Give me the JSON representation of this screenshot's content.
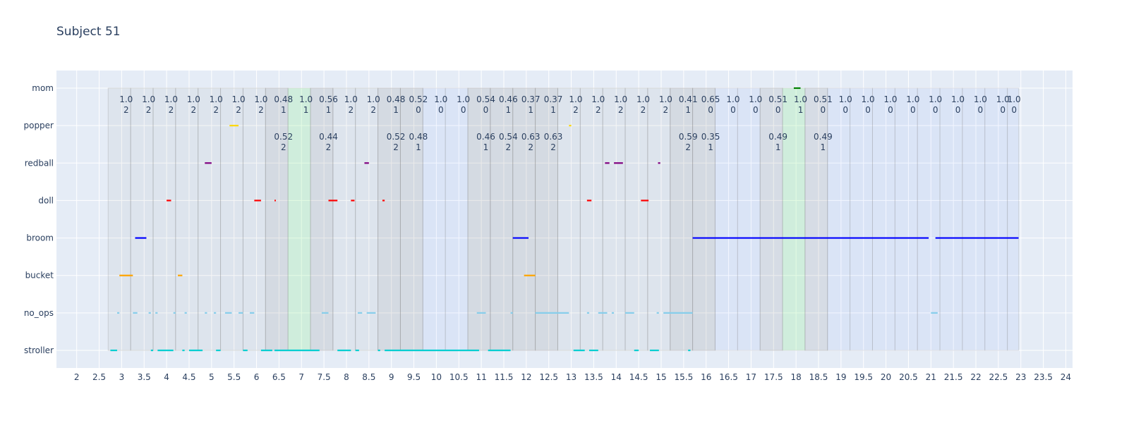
{
  "chart_data": {
    "type": "timeline",
    "title": "Subject 51",
    "xlabel": "",
    "ylabel": "",
    "xlim": [
      1.55,
      24.15
    ],
    "x_ticks": [
      "2",
      "2.5",
      "3",
      "3.5",
      "4",
      "4.5",
      "5",
      "5.5",
      "6",
      "6.5",
      "7",
      "7.5",
      "8",
      "8.5",
      "9",
      "9.5",
      "10",
      "10.5",
      "11",
      "11.5",
      "12",
      "12.5",
      "13",
      "13.5",
      "14",
      "14.5",
      "15",
      "15.5",
      "16",
      "16.5",
      "17",
      "17.5",
      "18",
      "18.5",
      "19",
      "19.5",
      "20",
      "20.5",
      "21",
      "21.5",
      "22",
      "22.5",
      "23",
      "23.5",
      "24"
    ],
    "categories": [
      "stroller",
      "no_ops",
      "bucket",
      "broom",
      "doll",
      "redball",
      "popper",
      "mom"
    ],
    "grid": true,
    "colors": {
      "plot_bg": "#e5ecf6",
      "grid": "#ffffff",
      "text": "#2a3f5f",
      "stroller": "#00ced1",
      "no_ops": "#87ceeb",
      "bucket": "#ffa500",
      "broom": "#0000ff",
      "doll": "#ff0000",
      "redball": "#800080",
      "popper": "#ffd700",
      "mom": "#008000",
      "window_gray": "#808080",
      "window_blue": "#5c7cfa",
      "window_green": "#90ee90"
    },
    "series": [
      {
        "name": "stroller",
        "segments": [
          [
            2.75,
            2.9
          ],
          [
            3.65,
            3.7
          ],
          [
            3.8,
            4.15
          ],
          [
            4.35,
            4.4
          ],
          [
            4.5,
            4.8
          ],
          [
            5.1,
            5.2
          ],
          [
            5.7,
            5.8
          ],
          [
            6.1,
            6.35
          ],
          [
            6.4,
            7.4
          ],
          [
            7.8,
            8.1
          ],
          [
            8.2,
            8.28
          ],
          [
            8.7,
            8.75
          ],
          [
            8.85,
            10.95
          ],
          [
            11.15,
            11.65
          ],
          [
            13.05,
            13.3
          ],
          [
            13.4,
            13.6
          ],
          [
            14.4,
            14.5
          ],
          [
            14.75,
            14.95
          ],
          [
            15.6,
            15.65
          ]
        ]
      },
      {
        "name": "no_ops",
        "segments": [
          [
            2.9,
            2.95
          ],
          [
            3.25,
            3.35
          ],
          [
            3.6,
            3.65
          ],
          [
            3.75,
            3.8
          ],
          [
            4.15,
            4.2
          ],
          [
            4.4,
            4.45
          ],
          [
            4.85,
            4.9
          ],
          [
            5.05,
            5.1
          ],
          [
            5.3,
            5.45
          ],
          [
            5.6,
            5.7
          ],
          [
            5.85,
            5.95
          ],
          [
            7.45,
            7.6
          ],
          [
            8.25,
            8.35
          ],
          [
            8.45,
            8.65
          ],
          [
            10.9,
            11.1
          ],
          [
            11.65,
            11.7
          ],
          [
            12.2,
            12.95
          ],
          [
            13.35,
            13.4
          ],
          [
            13.6,
            13.8
          ],
          [
            13.9,
            13.95
          ],
          [
            14.2,
            14.4
          ],
          [
            14.9,
            14.95
          ],
          [
            15.05,
            15.7
          ],
          [
            21.0,
            21.15
          ]
        ]
      },
      {
        "name": "bucket",
        "segments": [
          [
            2.95,
            3.25
          ],
          [
            4.25,
            4.35
          ],
          [
            11.95,
            12.2
          ]
        ]
      },
      {
        "name": "broom",
        "segments": [
          [
            3.3,
            3.55
          ],
          [
            11.7,
            12.05
          ],
          [
            15.7,
            20.95
          ],
          [
            21.1,
            22.95
          ]
        ]
      },
      {
        "name": "doll",
        "segments": [
          [
            4.0,
            4.1
          ],
          [
            5.95,
            6.1
          ],
          [
            6.4,
            6.43
          ],
          [
            7.6,
            7.8
          ],
          [
            8.1,
            8.18
          ],
          [
            8.8,
            8.85
          ],
          [
            13.35,
            13.45
          ],
          [
            14.55,
            14.72
          ]
        ]
      },
      {
        "name": "redball",
        "segments": [
          [
            4.85,
            5.0
          ],
          [
            8.4,
            8.5
          ],
          [
            13.75,
            13.85
          ],
          [
            13.95,
            14.15
          ],
          [
            14.93,
            14.98
          ]
        ]
      },
      {
        "name": "popper",
        "segments": [
          [
            5.4,
            5.6
          ],
          [
            12.95,
            13.0
          ]
        ]
      },
      {
        "name": "mom",
        "segments": [
          [
            17.95,
            18.1
          ]
        ]
      }
    ],
    "windows": [
      {
        "x0": 2.7,
        "x1": 3.2,
        "color": "gray"
      },
      {
        "x0": 3.2,
        "x1": 3.7,
        "color": "gray"
      },
      {
        "x0": 3.7,
        "x1": 4.2,
        "color": "gray"
      },
      {
        "x0": 4.2,
        "x1": 4.7,
        "color": "gray"
      },
      {
        "x0": 4.7,
        "x1": 5.2,
        "color": "gray"
      },
      {
        "x0": 5.2,
        "x1": 5.7,
        "color": "gray"
      },
      {
        "x0": 5.7,
        "x1": 6.2,
        "color": "gray"
      },
      {
        "x0": 6.2,
        "x1": 6.7,
        "color": "dark"
      },
      {
        "x0": 6.7,
        "x1": 7.2,
        "color": "green"
      },
      {
        "x0": 7.2,
        "x1": 7.7,
        "color": "dark"
      },
      {
        "x0": 7.7,
        "x1": 8.2,
        "color": "gray"
      },
      {
        "x0": 8.2,
        "x1": 8.7,
        "color": "gray"
      },
      {
        "x0": 8.7,
        "x1": 9.2,
        "color": "dark"
      },
      {
        "x0": 9.2,
        "x1": 9.7,
        "color": "dark"
      },
      {
        "x0": 9.7,
        "x1": 10.2,
        "color": "blue"
      },
      {
        "x0": 10.2,
        "x1": 10.7,
        "color": "blue"
      },
      {
        "x0": 10.7,
        "x1": 11.2,
        "color": "dark"
      },
      {
        "x0": 11.2,
        "x1": 11.7,
        "color": "dark"
      },
      {
        "x0": 11.7,
        "x1": 12.2,
        "color": "dark"
      },
      {
        "x0": 12.2,
        "x1": 12.7,
        "color": "dark"
      },
      {
        "x0": 12.7,
        "x1": 13.2,
        "color": "gray"
      },
      {
        "x0": 13.2,
        "x1": 13.7,
        "color": "gray"
      },
      {
        "x0": 13.7,
        "x1": 14.2,
        "color": "gray"
      },
      {
        "x0": 14.2,
        "x1": 14.7,
        "color": "gray"
      },
      {
        "x0": 14.7,
        "x1": 15.2,
        "color": "gray"
      },
      {
        "x0": 15.2,
        "x1": 15.7,
        "color": "dark"
      },
      {
        "x0": 15.7,
        "x1": 16.2,
        "color": "dark"
      },
      {
        "x0": 16.2,
        "x1": 16.7,
        "color": "blue"
      },
      {
        "x0": 16.7,
        "x1": 17.2,
        "color": "blue"
      },
      {
        "x0": 17.2,
        "x1": 17.7,
        "color": "darkblue"
      },
      {
        "x0": 17.7,
        "x1": 18.2,
        "color": "green"
      },
      {
        "x0": 18.2,
        "x1": 18.7,
        "color": "darkblue"
      },
      {
        "x0": 18.7,
        "x1": 19.2,
        "color": "blue"
      },
      {
        "x0": 19.2,
        "x1": 19.7,
        "color": "blue"
      },
      {
        "x0": 19.7,
        "x1": 20.2,
        "color": "blue"
      },
      {
        "x0": 20.2,
        "x1": 20.7,
        "color": "blue"
      },
      {
        "x0": 20.7,
        "x1": 21.2,
        "color": "blue"
      },
      {
        "x0": 21.2,
        "x1": 21.7,
        "color": "blue"
      },
      {
        "x0": 21.7,
        "x1": 22.2,
        "color": "blue"
      },
      {
        "x0": 22.2,
        "x1": 22.7,
        "color": "blue"
      },
      {
        "x0": 22.7,
        "x1": 22.95,
        "color": "blue"
      }
    ],
    "annotations": [
      {
        "x": 3.1,
        "row": "top",
        "value": "1.0",
        "label": "2"
      },
      {
        "x": 3.6,
        "row": "top",
        "value": "1.0",
        "label": "2"
      },
      {
        "x": 4.1,
        "row": "top",
        "value": "1.0",
        "label": "2"
      },
      {
        "x": 4.6,
        "row": "top",
        "value": "1.0",
        "label": "2"
      },
      {
        "x": 5.1,
        "row": "top",
        "value": "1.0",
        "label": "2"
      },
      {
        "x": 5.6,
        "row": "top",
        "value": "1.0",
        "label": "2"
      },
      {
        "x": 6.1,
        "row": "top",
        "value": "1.0",
        "label": "2"
      },
      {
        "x": 6.6,
        "row": "top",
        "value": "0.48",
        "label": "1"
      },
      {
        "x": 6.6,
        "row": "second",
        "value": "0.52",
        "label": "2"
      },
      {
        "x": 7.1,
        "row": "top",
        "value": "1.0",
        "label": "1"
      },
      {
        "x": 7.6,
        "row": "top",
        "value": "0.56",
        "label": "1"
      },
      {
        "x": 7.6,
        "row": "second",
        "value": "0.44",
        "label": "2"
      },
      {
        "x": 8.1,
        "row": "top",
        "value": "1.0",
        "label": "2"
      },
      {
        "x": 8.6,
        "row": "top",
        "value": "1.0",
        "label": "2"
      },
      {
        "x": 9.1,
        "row": "top",
        "value": "0.48",
        "label": "1"
      },
      {
        "x": 9.1,
        "row": "second",
        "value": "0.52",
        "label": "2"
      },
      {
        "x": 9.6,
        "row": "top",
        "value": "0.52",
        "label": "0"
      },
      {
        "x": 9.6,
        "row": "second",
        "value": "0.48",
        "label": "1"
      },
      {
        "x": 10.1,
        "row": "top",
        "value": "1.0",
        "label": "0"
      },
      {
        "x": 10.6,
        "row": "top",
        "value": "1.0",
        "label": "0"
      },
      {
        "x": 11.1,
        "row": "top",
        "value": "0.54",
        "label": "0"
      },
      {
        "x": 11.1,
        "row": "second",
        "value": "0.46",
        "label": "1"
      },
      {
        "x": 11.6,
        "row": "top",
        "value": "0.46",
        "label": "1"
      },
      {
        "x": 11.6,
        "row": "second",
        "value": "0.54",
        "label": "2"
      },
      {
        "x": 12.1,
        "row": "top",
        "value": "0.37",
        "label": "1"
      },
      {
        "x": 12.1,
        "row": "second",
        "value": "0.63",
        "label": "2"
      },
      {
        "x": 12.6,
        "row": "top",
        "value": "0.37",
        "label": "1"
      },
      {
        "x": 12.6,
        "row": "second",
        "value": "0.63",
        "label": "2"
      },
      {
        "x": 13.1,
        "row": "top",
        "value": "1.0",
        "label": "2"
      },
      {
        "x": 13.6,
        "row": "top",
        "value": "1.0",
        "label": "2"
      },
      {
        "x": 14.1,
        "row": "top",
        "value": "1.0",
        "label": "2"
      },
      {
        "x": 14.6,
        "row": "top",
        "value": "1.0",
        "label": "2"
      },
      {
        "x": 15.1,
        "row": "top",
        "value": "1.0",
        "label": "2"
      },
      {
        "x": 15.6,
        "row": "top",
        "value": "0.41",
        "label": "1"
      },
      {
        "x": 15.6,
        "row": "second",
        "value": "0.59",
        "label": "2"
      },
      {
        "x": 16.1,
        "row": "top",
        "value": "0.65",
        "label": "0"
      },
      {
        "x": 16.1,
        "row": "second",
        "value": "0.35",
        "label": "1"
      },
      {
        "x": 16.6,
        "row": "top",
        "value": "1.0",
        "label": "0"
      },
      {
        "x": 17.1,
        "row": "top",
        "value": "1.0",
        "label": "0"
      },
      {
        "x": 17.6,
        "row": "top",
        "value": "0.51",
        "label": "0"
      },
      {
        "x": 17.6,
        "row": "second",
        "value": "0.49",
        "label": "1"
      },
      {
        "x": 18.1,
        "row": "top",
        "value": "1.0",
        "label": "1"
      },
      {
        "x": 18.6,
        "row": "top",
        "value": "0.51",
        "label": "0"
      },
      {
        "x": 18.6,
        "row": "second",
        "value": "0.49",
        "label": "1"
      },
      {
        "x": 19.1,
        "row": "top",
        "value": "1.0",
        "label": "0"
      },
      {
        "x": 19.6,
        "row": "top",
        "value": "1.0",
        "label": "0"
      },
      {
        "x": 20.1,
        "row": "top",
        "value": "1.0",
        "label": "0"
      },
      {
        "x": 20.6,
        "row": "top",
        "value": "1.0",
        "label": "0"
      },
      {
        "x": 21.1,
        "row": "top",
        "value": "1.0",
        "label": "0"
      },
      {
        "x": 21.6,
        "row": "top",
        "value": "1.0",
        "label": "0"
      },
      {
        "x": 22.1,
        "row": "top",
        "value": "1.0",
        "label": "0"
      },
      {
        "x": 22.6,
        "row": "top",
        "value": "1.0",
        "label": "0"
      },
      {
        "x": 22.85,
        "row": "top",
        "value": "1.0",
        "label": "0"
      }
    ]
  }
}
